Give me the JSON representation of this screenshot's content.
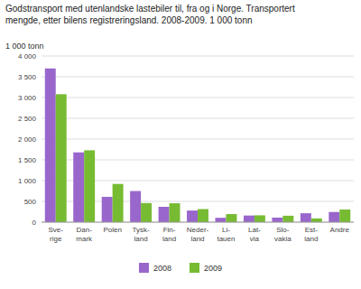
{
  "chart_data": {
    "type": "bar",
    "title": "Godstransport med utenlandske lastebiler til, fra og i Norge. Transportert",
    "subtitle": "mengde, etter bilens registreringsland. 2008-2009. 1 000 tonn",
    "ylabel": "1 000 tonn",
    "categories": [
      "Sve-\nrige",
      "Dan-\nmark",
      "Polen",
      "Tysk-\nland",
      "Fin-\nland",
      "Neder-\nland",
      "Li-\ntauen",
      "Lat-\nvia",
      "Slo-\nvakia",
      "Est-\nland",
      "Andre"
    ],
    "series": [
      {
        "name": "2008",
        "color": "#9966cc",
        "values": [
          3700,
          1680,
          610,
          750,
          370,
          280,
          105,
          160,
          110,
          215,
          245
        ]
      },
      {
        "name": "2009",
        "color": "#77bb33",
        "values": [
          3080,
          1730,
          920,
          460,
          455,
          315,
          195,
          165,
          155,
          90,
          305
        ]
      }
    ],
    "ylim": [
      0,
      4000
    ],
    "yticks": [
      0,
      500,
      {
        "value": 1000,
        "label": "1 000"
      },
      {
        "value": 1500,
        "label": "1 500"
      },
      {
        "value": 2000,
        "label": "2 000"
      },
      {
        "value": 2500,
        "label": "2 500"
      },
      {
        "value": 3000,
        "label": "3 000"
      },
      {
        "value": 3500,
        "label": "3 500"
      },
      {
        "value": 4000,
        "label": "4 000"
      }
    ],
    "grid": true,
    "legend": "bottom"
  }
}
